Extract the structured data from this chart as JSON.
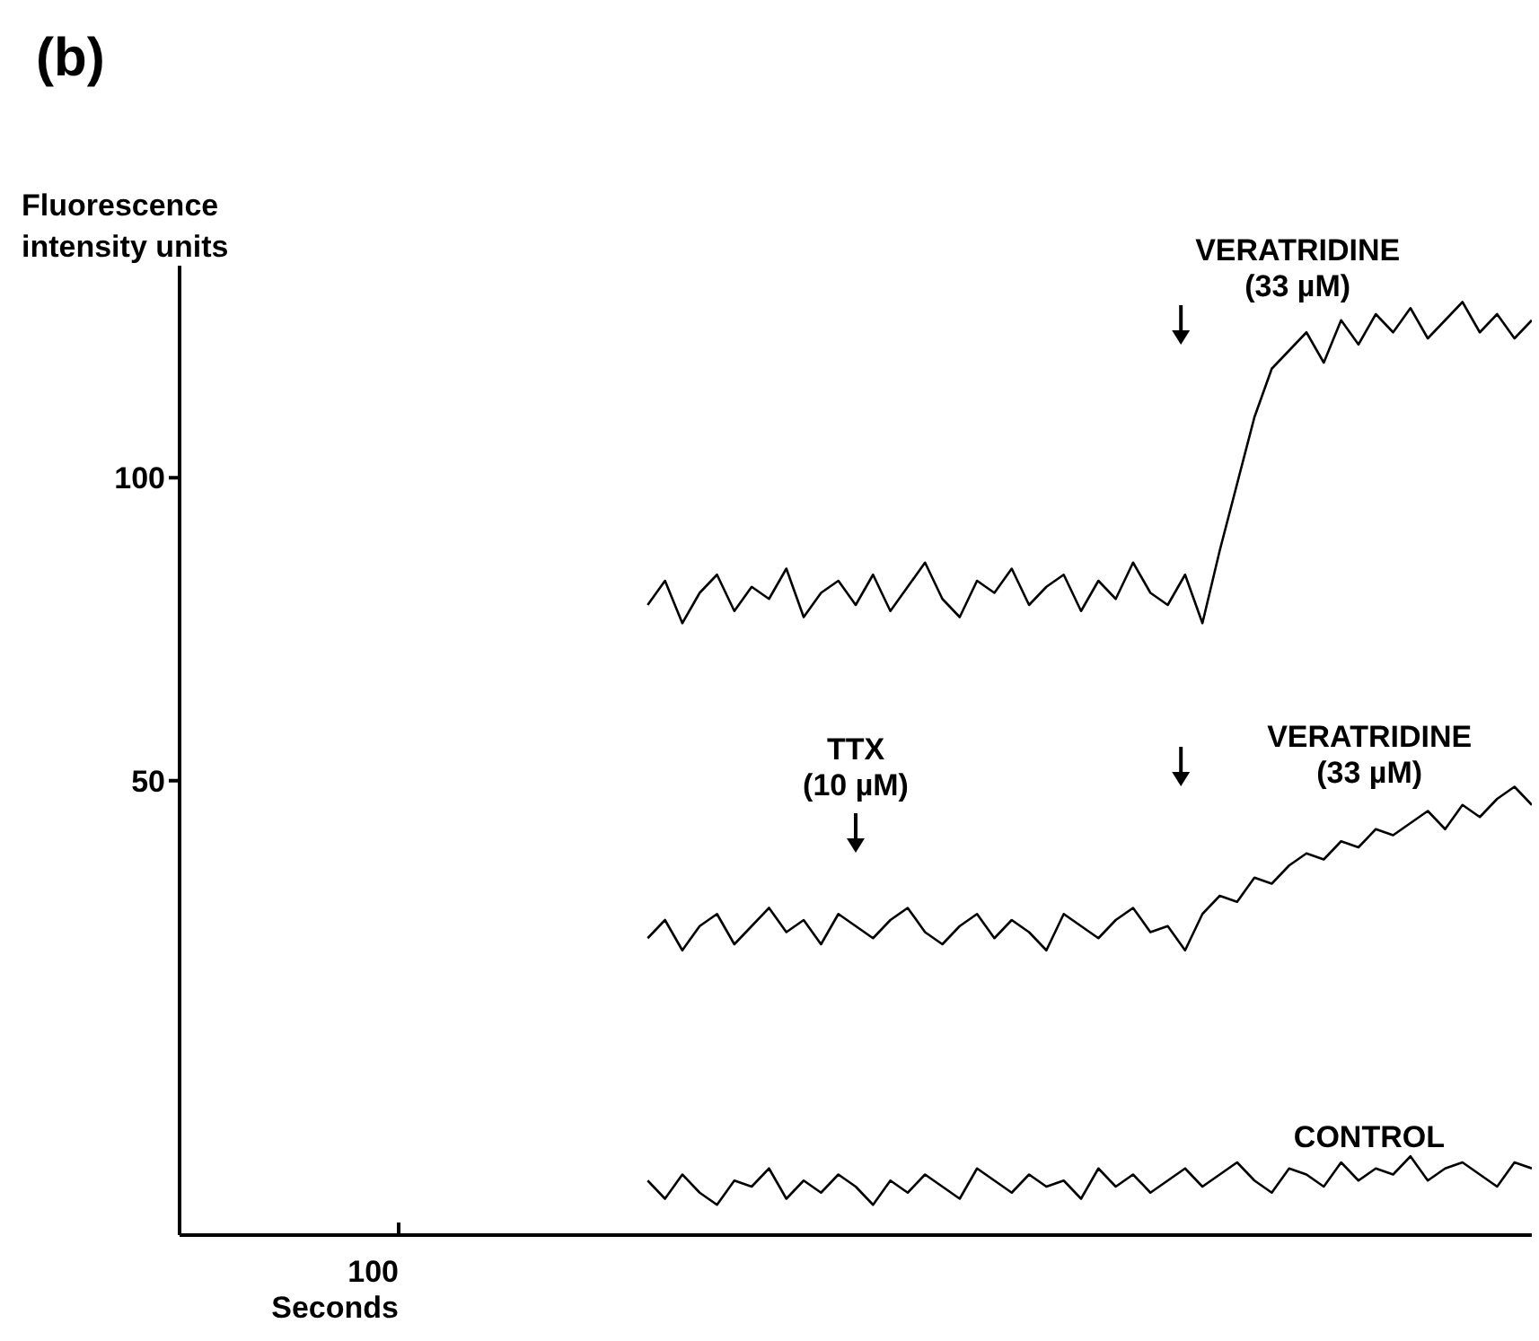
{
  "chart_data": {
    "type": "line",
    "title": "(b)",
    "xlabel": "Seconds",
    "ylabel": "Fluorescence\nintensity units",
    "categories": [
      null,
      null,
      null,
      null,
      null,
      null,
      null,
      null,
      null,
      null,
      null,
      null,
      null,
      null,
      null,
      null,
      null,
      null,
      null,
      null,
      null,
      null,
      null,
      null,
      null,
      null,
      null,
      null,
      null,
      null,
      null,
      null,
      null,
      null,
      null,
      null,
      null,
      null,
      null,
      null,
      null,
      null,
      null,
      null,
      null,
      null,
      null,
      null,
      null,
      null,
      null,
      null,
      null,
      null,
      null,
      null,
      null,
      null,
      null,
      null,
      null,
      null,
      null,
      null,
      null,
      null,
      null,
      null,
      null,
      null,
      null,
      null,
      null,
      null,
      null,
      null,
      null,
      null,
      null
    ],
    "series": [
      {
        "color": "#000000",
        "values": [
          null,
          null,
          null,
          null,
          null,
          null,
          null,
          null,
          null,
          null,
          null,
          null,
          null,
          null,
          null,
          null,
          null,
          null,
          null,
          null,
          null,
          null,
          null,
          null,
          null,
          null,
          null,
          79,
          83,
          76,
          81,
          84,
          78,
          82,
          80,
          85,
          77,
          81,
          83,
          79,
          84,
          78,
          82,
          86,
          80,
          77,
          83,
          81,
          85,
          79,
          82,
          84,
          78,
          83,
          80,
          86,
          81,
          79,
          84,
          76,
          88,
          99,
          110,
          118,
          121,
          124,
          119,
          126,
          122,
          127,
          124,
          128,
          123,
          126,
          129,
          124,
          127,
          123,
          126
        ]
      },
      {
        "color": "#000000",
        "values": [
          null,
          null,
          null,
          null,
          null,
          null,
          null,
          null,
          null,
          null,
          null,
          null,
          null,
          null,
          null,
          null,
          null,
          null,
          null,
          null,
          null,
          null,
          null,
          null,
          null,
          null,
          null,
          24,
          27,
          22,
          26,
          28,
          23,
          26,
          29,
          25,
          27,
          23,
          28,
          26,
          24,
          27,
          29,
          25,
          23,
          26,
          28,
          24,
          27,
          25,
          22,
          28,
          26,
          24,
          27,
          29,
          25,
          26,
          22,
          28,
          31,
          30,
          34,
          33,
          36,
          38,
          37,
          40,
          39,
          42,
          41,
          43,
          45,
          42,
          46,
          44,
          47,
          49,
          46
        ]
      },
      {
        "color": "#000000",
        "values": [
          null,
          null,
          null,
          null,
          null,
          null,
          null,
          null,
          null,
          null,
          null,
          null,
          null,
          null,
          null,
          null,
          null,
          null,
          null,
          null,
          null,
          null,
          null,
          null,
          null,
          null,
          null,
          -16,
          -19,
          -15,
          -18,
          -20,
          -16,
          -17,
          -14,
          -19,
          -16,
          -18,
          -15,
          -17,
          -20,
          -16,
          -18,
          -15,
          -17,
          -19,
          -14,
          -16,
          -18,
          -15,
          -17,
          -16,
          -19,
          -14,
          -17,
          -15,
          -18,
          -16,
          -14,
          -17,
          -15,
          -13,
          -16,
          -18,
          -14,
          -15,
          -17,
          -13,
          -16,
          -14,
          -15,
          -12,
          -16,
          -14,
          -13,
          -15,
          -17,
          -13,
          -14
        ]
      }
    ],
    "annotations": [
      "VERATRIDINE\n(33 µM)",
      "TTX\n(10 µM)",
      "VERATRIDINE\n(33 µM)",
      "CONTROL",
      "100"
    ],
    "ylim": [
      -25,
      135
    ],
    "yticks": [
      50,
      100
    ],
    "marker": "none",
    "line_style": "solid",
    "tick_labels": "y"
  }
}
